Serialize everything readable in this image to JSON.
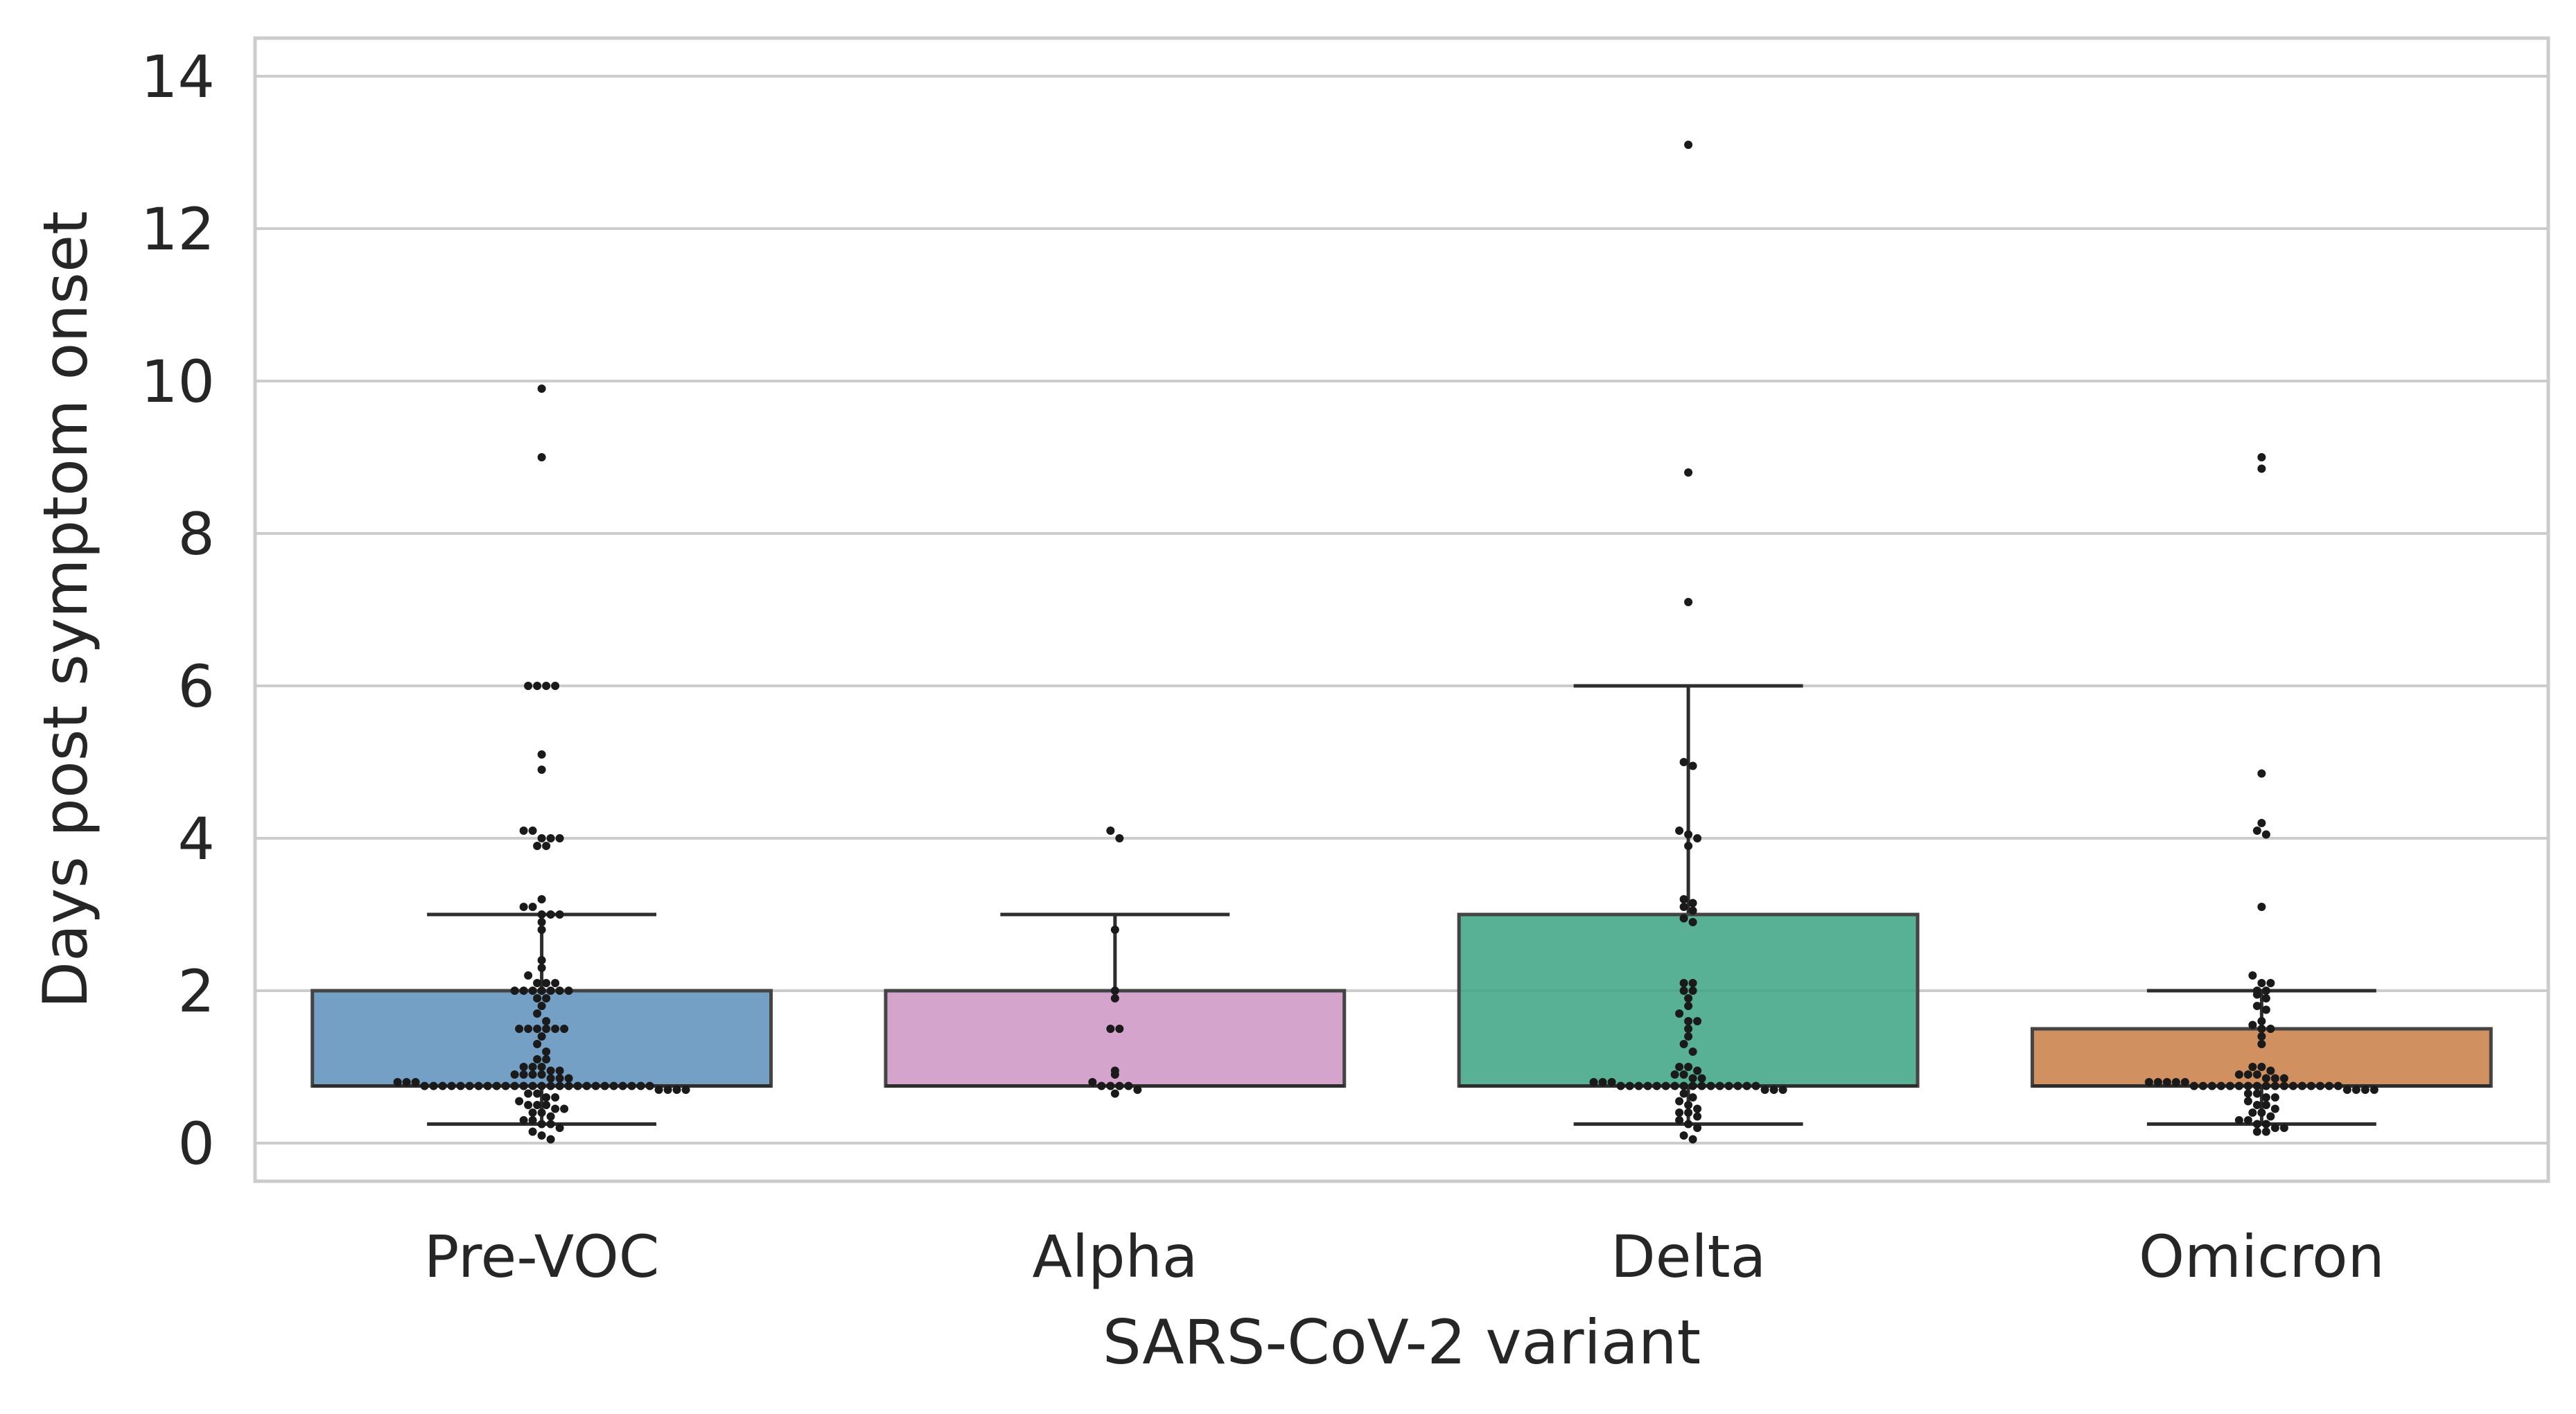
{
  "chart_data": {
    "type": "box",
    "xlabel": "SARS-CoV-2 variant",
    "ylabel": "Days post symptom onset",
    "categories": [
      "Pre-VOC",
      "Alpha",
      "Delta",
      "Omicron"
    ],
    "ylim": [
      -0.5,
      14.5
    ],
    "yticks": [
      0,
      2,
      4,
      6,
      8,
      10,
      12,
      14
    ],
    "grid": "horizontal",
    "legend": "none",
    "colors": {
      "Pre-VOC": "#5b8fba",
      "Alpha": "#cc94c3",
      "Delta": "#3ba283",
      "Omicron": "#c87c44",
      "points": "#1a1a1a",
      "grid": "#cccccc",
      "frame": "#cccccc"
    },
    "boxes": [
      {
        "category": "Pre-VOC",
        "whisker_low": 0.25,
        "q1": 0.75,
        "median": 0.75,
        "q3": 2.0,
        "whisker_high": 3.0
      },
      {
        "category": "Alpha",
        "whisker_low": 0.75,
        "q1": 0.75,
        "median": 0.75,
        "q3": 2.0,
        "whisker_high": 3.0
      },
      {
        "category": "Delta",
        "whisker_low": 0.25,
        "q1": 0.75,
        "median": 0.75,
        "q3": 3.0,
        "whisker_high": 6.0
      },
      {
        "category": "Omicron",
        "whisker_low": 0.25,
        "q1": 0.75,
        "median": 0.75,
        "q3": 1.5,
        "whisker_high": 2.0
      }
    ],
    "points": {
      "Pre-VOC": [
        9.9,
        9.0,
        6.0,
        6.0,
        6.0,
        6.0,
        5.1,
        4.9,
        4.1,
        4.1,
        4.0,
        4.0,
        4.0,
        3.9,
        3.9,
        3.2,
        3.1,
        3.1,
        3.0,
        3.0,
        3.0,
        2.9,
        2.8,
        2.4,
        2.3,
        2.2,
        2.1,
        2.1,
        2.1,
        2.0,
        2.0,
        2.0,
        2.0,
        2.0,
        2.0,
        2.0,
        1.9,
        1.9,
        1.8,
        1.7,
        1.6,
        1.5,
        1.5,
        1.5,
        1.5,
        1.5,
        1.5,
        1.4,
        1.3,
        1.2,
        1.1,
        1.1,
        1.0,
        1.0,
        1.0,
        0.95,
        0.95,
        0.9,
        0.9,
        0.9,
        0.9,
        0.85,
        0.85,
        0.85,
        0.8,
        0.8,
        0.8,
        0.75,
        0.75,
        0.75,
        0.75,
        0.75,
        0.75,
        0.75,
        0.75,
        0.75,
        0.75,
        0.75,
        0.75,
        0.75,
        0.75,
        0.75,
        0.75,
        0.75,
        0.75,
        0.75,
        0.75,
        0.75,
        0.75,
        0.75,
        0.75,
        0.75,
        0.75,
        0.7,
        0.7,
        0.7,
        0.7,
        0.65,
        0.65,
        0.6,
        0.6,
        0.55,
        0.5,
        0.5,
        0.5,
        0.45,
        0.45,
        0.4,
        0.4,
        0.35,
        0.3,
        0.3,
        0.25,
        0.25,
        0.2,
        0.15,
        0.1,
        0.05
      ],
      "Alpha": [
        4.1,
        4.0,
        2.8,
        2.0,
        1.9,
        1.5,
        1.5,
        0.95,
        0.9,
        0.8,
        0.75,
        0.75,
        0.75,
        0.75,
        0.7,
        0.65
      ],
      "Delta": [
        13.1,
        8.8,
        7.1,
        5.0,
        4.95,
        4.1,
        4.05,
        4.0,
        3.9,
        3.2,
        3.15,
        3.1,
        3.05,
        2.95,
        2.9,
        2.1,
        2.1,
        2.0,
        2.0,
        1.9,
        1.8,
        1.7,
        1.6,
        1.6,
        1.5,
        1.4,
        1.3,
        1.2,
        1.0,
        1.0,
        0.95,
        0.9,
        0.9,
        0.85,
        0.85,
        0.8,
        0.8,
        0.8,
        0.75,
        0.75,
        0.75,
        0.75,
        0.75,
        0.75,
        0.75,
        0.75,
        0.75,
        0.75,
        0.75,
        0.75,
        0.75,
        0.75,
        0.75,
        0.75,
        0.7,
        0.7,
        0.7,
        0.65,
        0.6,
        0.55,
        0.5,
        0.45,
        0.4,
        0.4,
        0.35,
        0.3,
        0.25,
        0.2,
        0.1,
        0.05
      ],
      "Omicron": [
        9.0,
        8.85,
        4.85,
        4.2,
        4.1,
        4.05,
        3.1,
        2.2,
        2.1,
        2.1,
        2.0,
        2.0,
        1.95,
        1.9,
        1.8,
        1.75,
        1.6,
        1.55,
        1.5,
        1.5,
        1.4,
        1.3,
        1.0,
        1.0,
        0.95,
        0.9,
        0.9,
        0.9,
        0.85,
        0.85,
        0.85,
        0.8,
        0.8,
        0.8,
        0.8,
        0.8,
        0.75,
        0.75,
        0.75,
        0.75,
        0.75,
        0.75,
        0.75,
        0.75,
        0.75,
        0.75,
        0.75,
        0.75,
        0.75,
        0.75,
        0.75,
        0.75,
        0.75,
        0.7,
        0.7,
        0.7,
        0.7,
        0.65,
        0.65,
        0.6,
        0.6,
        0.55,
        0.5,
        0.5,
        0.45,
        0.4,
        0.4,
        0.35,
        0.3,
        0.3,
        0.25,
        0.25,
        0.2,
        0.2,
        0.15,
        0.15
      ]
    }
  }
}
